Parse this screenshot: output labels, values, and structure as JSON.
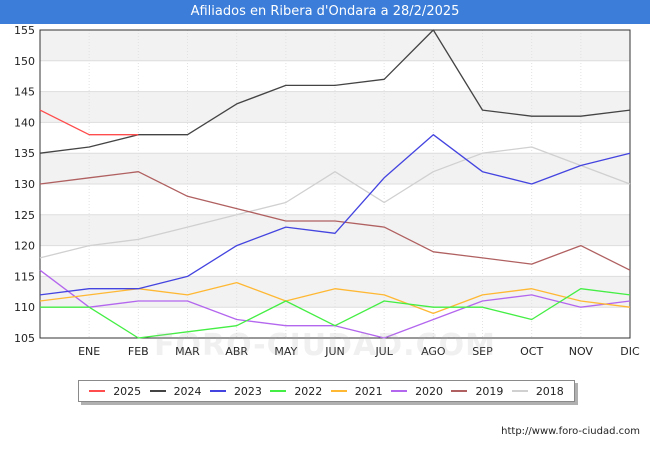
{
  "title": "Afiliados en Ribera d'Ondara a 28/2/2025",
  "footer": "http://www.foro-ciudad.com",
  "watermark": "FORO-CIUDAD.COM",
  "chart_data": {
    "type": "line",
    "title": "Afiliados en Ribera d'Ondara a 28/2/2025",
    "categories": [
      "",
      "ENE",
      "FEB",
      "MAR",
      "ABR",
      "MAY",
      "JUN",
      "JUL",
      "AGO",
      "SEP",
      "OCT",
      "NOV",
      "DIC"
    ],
    "ylim": [
      105,
      155
    ],
    "yticks": [
      105,
      110,
      115,
      120,
      125,
      130,
      135,
      140,
      145,
      150,
      155
    ],
    "grid": true,
    "legend_position": "bottom",
    "series": [
      {
        "name": "2025",
        "color": "#ff4c4c",
        "values": [
          142,
          138,
          138,
          null,
          null,
          null,
          null,
          null,
          null,
          null,
          null,
          null,
          null
        ]
      },
      {
        "name": "2024",
        "color": "#444444",
        "values": [
          135,
          136,
          138,
          138,
          143,
          146,
          146,
          147,
          155,
          142,
          141,
          141,
          142
        ]
      },
      {
        "name": "2023",
        "color": "#4444e0",
        "values": [
          112,
          113,
          113,
          115,
          120,
          123,
          122,
          131,
          138,
          132,
          130,
          133,
          135
        ]
      },
      {
        "name": "2022",
        "color": "#44ee44",
        "values": [
          110,
          110,
          105,
          106,
          107,
          111,
          107,
          111,
          110,
          110,
          108,
          113,
          112
        ]
      },
      {
        "name": "2021",
        "color": "#ffb833",
        "values": [
          111,
          112,
          113,
          112,
          114,
          111,
          113,
          112,
          109,
          112,
          113,
          111,
          110
        ]
      },
      {
        "name": "2020",
        "color": "#b366ee",
        "values": [
          116,
          110,
          111,
          111,
          108,
          107,
          107,
          105,
          108,
          111,
          112,
          110,
          111
        ]
      },
      {
        "name": "2019",
        "color": "#b06060",
        "values": [
          130,
          131,
          132,
          128,
          126,
          124,
          124,
          123,
          119,
          118,
          117,
          120,
          116
        ]
      },
      {
        "name": "2018",
        "color": "#d0d0d0",
        "values": [
          118,
          120,
          121,
          123,
          125,
          127,
          132,
          127,
          132,
          135,
          136,
          133,
          130
        ]
      }
    ]
  }
}
